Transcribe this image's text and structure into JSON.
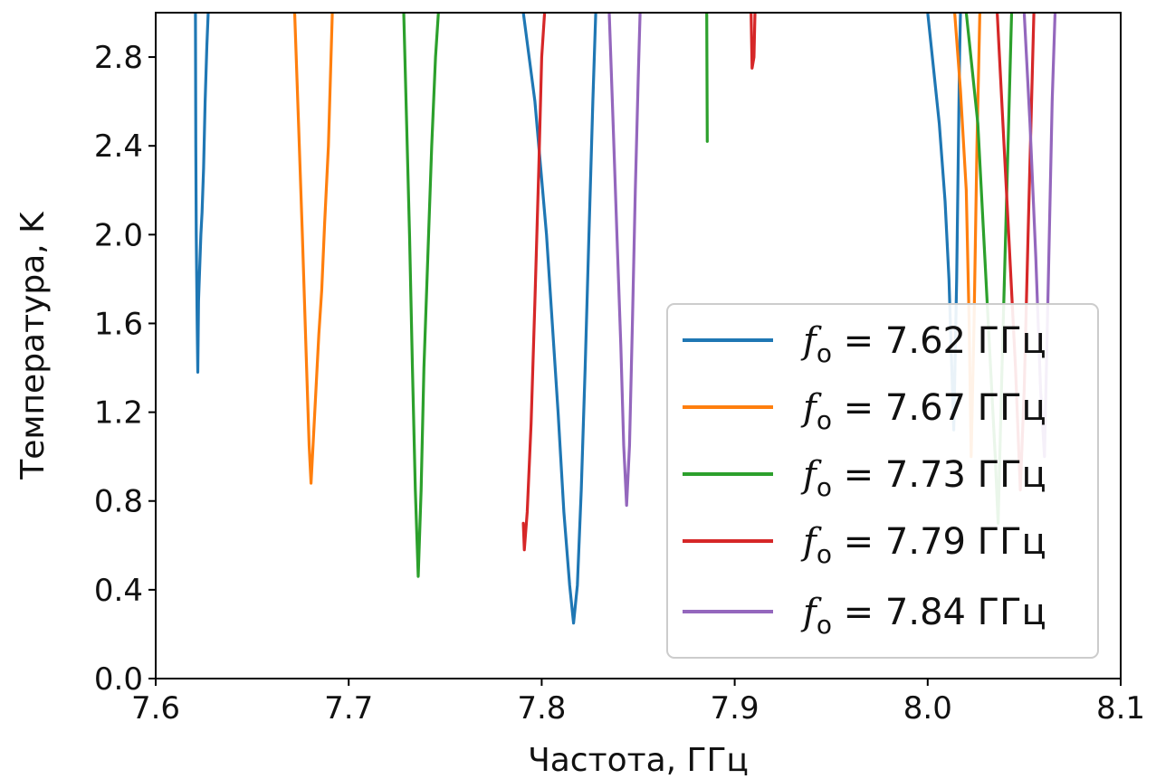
{
  "chart_data": {
    "type": "line",
    "xlabel": "Частота, ГГц",
    "ylabel": "Температура, K",
    "xlim": [
      7.6,
      8.1
    ],
    "ylim": [
      0.0,
      3.0
    ],
    "xticks": [
      "7.6",
      "7.7",
      "7.8",
      "7.9",
      "8.0",
      "8.1"
    ],
    "yticks": [
      "0.0",
      "0.4",
      "0.8",
      "1.2",
      "1.6",
      "2.0",
      "2.4",
      "2.8"
    ],
    "grid": false,
    "legend_position": "lower right",
    "series": [
      {
        "legend": {
          "sym": "f",
          "sub": "o",
          "rest": " = 7.62 ГГц"
        },
        "color": "#1f77b4",
        "segments": [
          [
            [
              7.6206,
              3.0
            ],
            [
              7.6208,
              2.4
            ],
            [
              7.621,
              2.0
            ],
            [
              7.6215,
              1.6
            ],
            [
              7.6218,
              1.38
            ],
            [
              7.6222,
              1.7
            ],
            [
              7.6228,
              1.85
            ],
            [
              7.6234,
              2.0
            ],
            [
              7.624,
              2.1
            ],
            [
              7.6248,
              2.3
            ],
            [
              7.6256,
              2.6
            ],
            [
              7.6265,
              2.85
            ],
            [
              7.6272,
              3.0
            ]
          ],
          [
            [
              7.7905,
              3.0
            ],
            [
              7.7935,
              2.8
            ],
            [
              7.7965,
              2.6
            ],
            [
              7.7995,
              2.3
            ],
            [
              7.8025,
              2.0
            ],
            [
              7.8055,
              1.6
            ],
            [
              7.8085,
              1.2
            ],
            [
              7.8115,
              0.75
            ],
            [
              7.8145,
              0.42
            ],
            [
              7.8165,
              0.25
            ],
            [
              7.8185,
              0.42
            ],
            [
              7.8205,
              0.85
            ],
            [
              7.8225,
              1.4
            ],
            [
              7.8245,
              2.0
            ],
            [
              7.8265,
              2.6
            ],
            [
              7.828,
              3.0
            ]
          ],
          [
            [
              8.0,
              3.0
            ],
            [
              8.003,
              2.75
            ],
            [
              8.006,
              2.5
            ],
            [
              8.009,
              2.15
            ],
            [
              8.011,
              1.8
            ],
            [
              8.0125,
              1.4
            ],
            [
              8.0135,
              1.12
            ],
            [
              8.015,
              1.8
            ],
            [
              8.0165,
              2.8
            ],
            [
              8.017,
              3.0
            ]
          ]
        ]
      },
      {
        "legend": {
          "sym": "f",
          "sub": "o",
          "rest": " = 7.67 ГГц"
        },
        "color": "#ff7f0e",
        "segments": [
          [
            [
              7.672,
              3.0
            ],
            [
              7.674,
              2.5
            ],
            [
              7.676,
              2.0
            ],
            [
              7.678,
              1.45
            ],
            [
              7.6795,
              1.05
            ],
            [
              7.6805,
              0.88
            ],
            [
              7.6815,
              1.05
            ],
            [
              7.683,
              1.3
            ],
            [
              7.6845,
              1.55
            ],
            [
              7.686,
              1.75
            ],
            [
              7.6875,
              2.05
            ],
            [
              7.6895,
              2.4
            ],
            [
              7.6915,
              3.0
            ]
          ],
          [
            [
              8.014,
              3.0
            ],
            [
              8.017,
              2.65
            ],
            [
              8.02,
              2.2
            ],
            [
              8.0215,
              1.6
            ],
            [
              8.0225,
              1.0
            ],
            [
              8.024,
              1.6
            ],
            [
              8.0255,
              2.4
            ],
            [
              8.027,
              3.0
            ]
          ]
        ]
      },
      {
        "legend": {
          "sym": "f",
          "sub": "o",
          "rest": " = 7.73 ГГц"
        },
        "color": "#2ca02c",
        "segments": [
          [
            [
              7.7285,
              3.0
            ],
            [
              7.73,
              2.5
            ],
            [
              7.7315,
              2.0
            ],
            [
              7.733,
              1.4
            ],
            [
              7.7345,
              0.85
            ],
            [
              7.736,
              0.46
            ],
            [
              7.7375,
              0.85
            ],
            [
              7.739,
              1.4
            ],
            [
              7.741,
              1.9
            ],
            [
              7.743,
              2.4
            ],
            [
              7.745,
              2.8
            ],
            [
              7.7465,
              3.0
            ]
          ],
          [
            [
              7.8855,
              3.0
            ],
            [
              7.8858,
              2.42
            ]
          ],
          [
            [
              8.02,
              3.0
            ],
            [
              8.023,
              2.75
            ],
            [
              8.026,
              2.5
            ],
            [
              8.029,
              2.0
            ],
            [
              8.032,
              1.5
            ],
            [
              8.035,
              1.0
            ],
            [
              8.0365,
              0.7
            ],
            [
              8.0385,
              1.4
            ],
            [
              8.041,
              2.2
            ],
            [
              8.0435,
              3.0
            ]
          ]
        ]
      },
      {
        "legend": {
          "sym": "f",
          "sub": "o",
          "rest": " = 7.79 ГГц"
        },
        "color": "#d62728",
        "segments": [
          [
            [
              7.7905,
              0.7
            ],
            [
              7.791,
              0.58
            ],
            [
              7.7925,
              0.75
            ],
            [
              7.7945,
              1.15
            ],
            [
              7.7965,
              1.7
            ],
            [
              7.7985,
              2.3
            ],
            [
              7.8,
              2.8
            ],
            [
              7.8015,
              3.0
            ]
          ],
          [
            [
              7.9085,
              3.0
            ],
            [
              7.909,
              2.75
            ],
            [
              7.91,
              2.8
            ],
            [
              7.9105,
              3.0
            ]
          ],
          [
            [
              8.036,
              3.0
            ],
            [
              8.039,
              2.5
            ],
            [
              8.042,
              2.0
            ],
            [
              8.0455,
              1.4
            ],
            [
              8.048,
              0.85
            ],
            [
              8.05,
              1.3
            ],
            [
              8.052,
              2.0
            ],
            [
              8.055,
              3.0
            ]
          ]
        ]
      },
      {
        "legend": {
          "sym": "f",
          "sub": "o",
          "rest": " = 7.84 ГГц"
        },
        "color": "#9467bd",
        "segments": [
          [
            [
              7.835,
              3.0
            ],
            [
              7.837,
              2.5
            ],
            [
              7.839,
              2.0
            ],
            [
              7.841,
              1.5
            ],
            [
              7.8425,
              1.05
            ],
            [
              7.844,
              0.78
            ],
            [
              7.8455,
              1.05
            ],
            [
              7.847,
              1.6
            ],
            [
              7.8485,
              2.2
            ],
            [
              7.85,
              2.7
            ],
            [
              7.851,
              3.0
            ]
          ],
          [
            [
              8.05,
              3.0
            ],
            [
              8.053,
              2.5
            ],
            [
              8.056,
              1.9
            ],
            [
              8.0585,
              1.3
            ],
            [
              8.0605,
              1.0
            ],
            [
              8.0625,
              1.8
            ],
            [
              8.0645,
              2.6
            ],
            [
              8.066,
              3.0
            ]
          ]
        ]
      }
    ]
  }
}
